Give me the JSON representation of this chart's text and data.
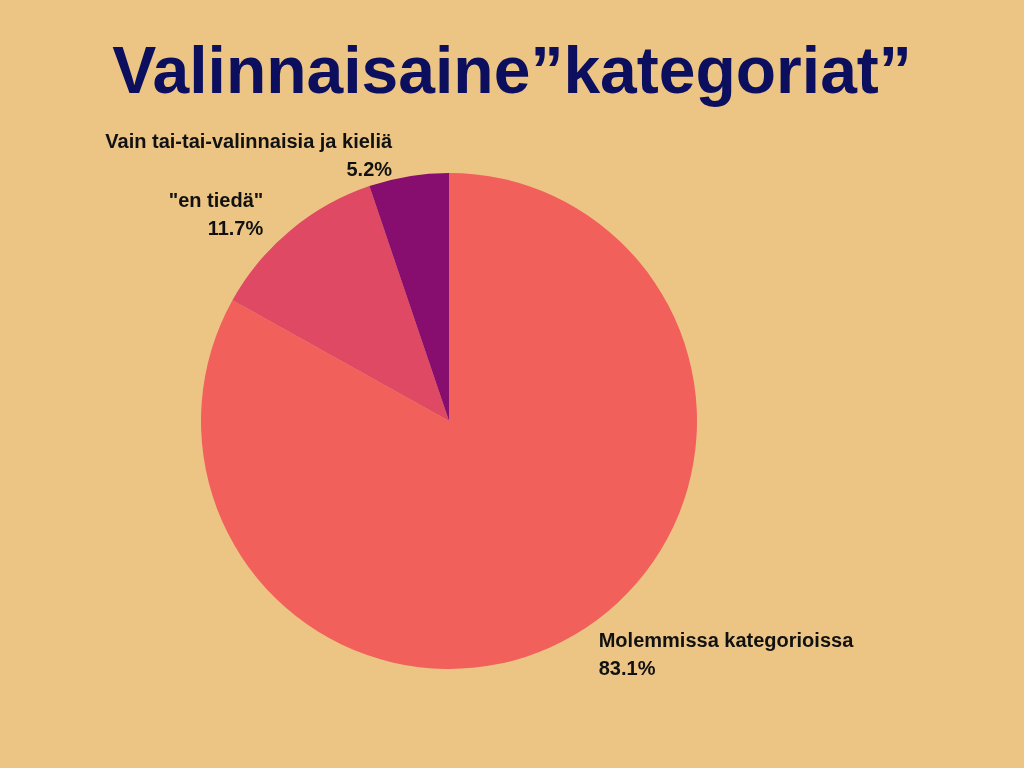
{
  "chart_data": {
    "type": "pie",
    "title": "Valinnaisaine”kategoriat”",
    "categories": [
      "Molemmissa kategorioissa",
      "\"en tiedä\"",
      "Vain tai-tai-valinnaisia ja kieliä"
    ],
    "values": [
      83.1,
      11.7,
      5.2
    ],
    "colors": [
      "#f2605c",
      "#df4963",
      "#870e6f"
    ],
    "value_labels": [
      "83.1%",
      "11.7%",
      "5.2%"
    ],
    "legend": false
  }
}
